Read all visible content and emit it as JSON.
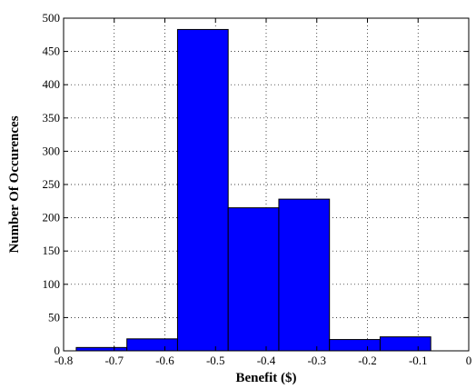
{
  "chart_data": {
    "type": "bar",
    "xlabel": "Benefit ($)",
    "ylabel": "Number Of Occurences",
    "xlim": [
      -0.8,
      0
    ],
    "ylim": [
      0,
      500
    ],
    "grid": true,
    "bar_color": "#0000ff",
    "x_ticks": [
      "-0.8",
      "-0.7",
      "-0.6",
      "-0.5",
      "-0.4",
      "-0.3",
      "-0.2",
      "-0.1",
      "0"
    ],
    "x_tick_values": [
      -0.8,
      -0.7,
      -0.6,
      -0.5,
      -0.4,
      -0.3,
      -0.2,
      -0.1,
      0
    ],
    "y_ticks": [
      "0",
      "50",
      "100",
      "150",
      "200",
      "250",
      "300",
      "350",
      "400",
      "450",
      "500"
    ],
    "y_tick_values": [
      0,
      50,
      100,
      150,
      200,
      250,
      300,
      350,
      400,
      450,
      500
    ],
    "bins": [
      {
        "x0": -0.775,
        "x1": -0.675,
        "value": 5
      },
      {
        "x0": -0.675,
        "x1": -0.575,
        "value": 18
      },
      {
        "x0": -0.575,
        "x1": -0.475,
        "value": 483
      },
      {
        "x0": -0.475,
        "x1": -0.375,
        "value": 215
      },
      {
        "x0": -0.375,
        "x1": -0.275,
        "value": 228
      },
      {
        "x0": -0.275,
        "x1": -0.175,
        "value": 17
      },
      {
        "x0": -0.175,
        "x1": -0.075,
        "value": 21
      }
    ]
  }
}
